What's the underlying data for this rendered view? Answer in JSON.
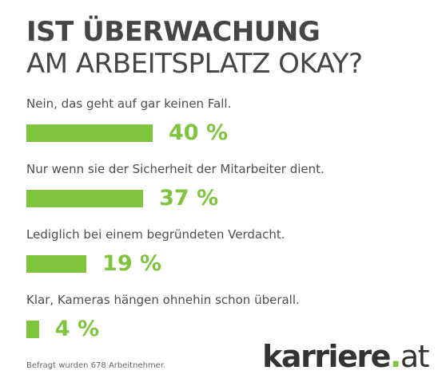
{
  "title": {
    "line1": "IST ÜBERWACHUNG",
    "line2": "AM ARBEITSPLATZ OKAY?"
  },
  "chart_data": {
    "type": "bar",
    "orientation": "horizontal",
    "categories": [
      "Nein, das geht auf gar keinen Fall.",
      "Nur wenn sie der Sicherheit der Mitarbeiter dient.",
      "Lediglich bei einem begründeten Verdacht.",
      "Klar, Kameras hängen ohnehin schon überall."
    ],
    "values": [
      40,
      37,
      19,
      4
    ],
    "value_labels": [
      "40 %",
      "37 %",
      "19 %",
      "4 %"
    ],
    "unit": "%",
    "xlim": [
      0,
      100
    ],
    "grid": false,
    "legend": "none",
    "bar_color": "#7ec43c"
  },
  "footnote": "Befragt wurden 678 Arbeitnehmer.",
  "brand": {
    "word": "karriere",
    "dot": ".",
    "tld": "at"
  },
  "colors": {
    "accent": "#7ec43c",
    "text": "#454545"
  }
}
